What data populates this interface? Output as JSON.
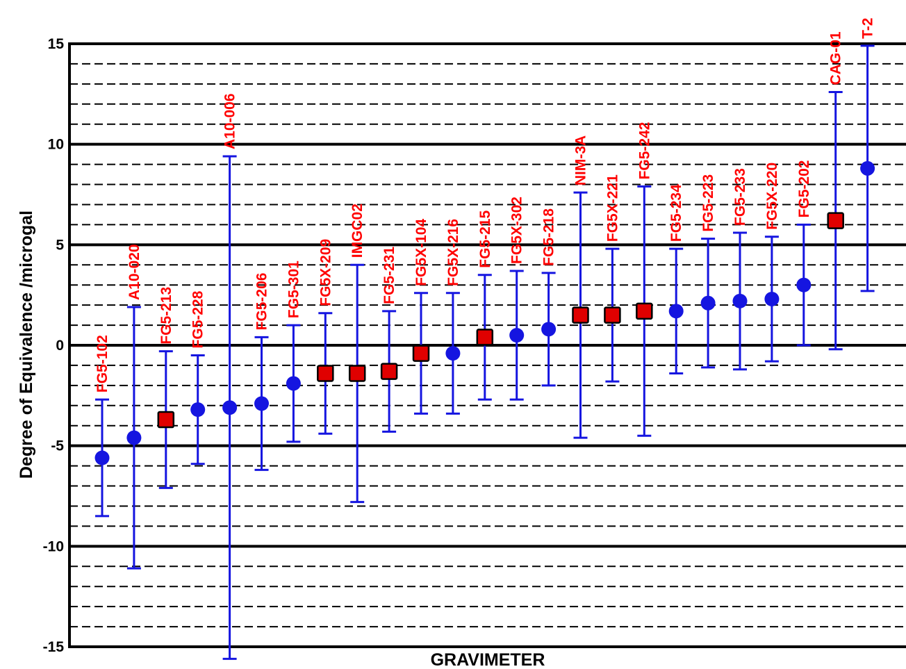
{
  "colors": {
    "errorbar": "#1515e0",
    "point_circle": "#1515e0",
    "point_square": "#e00000",
    "label": "#ff0000",
    "grid": "#000000"
  },
  "chart_data": {
    "type": "scatter",
    "title": "",
    "xlabel": "GRAVIMETER",
    "ylabel": "Degree of Equivalence /microgal",
    "ylim": [
      -15,
      15
    ],
    "yticks": [
      15,
      10,
      5,
      0,
      -5,
      -10,
      -15
    ],
    "grid": {
      "major_step": 5,
      "minor_step": 1,
      "minor_style": "dashed"
    },
    "legend": "none",
    "points": [
      {
        "name": "FG5-102",
        "y": -5.6,
        "lower": -8.5,
        "upper": -2.7,
        "marker": "circle"
      },
      {
        "name": "A10-020",
        "y": -4.6,
        "lower": -11.1,
        "upper": 1.9,
        "marker": "circle"
      },
      {
        "name": "FG5-213",
        "y": -3.7,
        "lower": -7.1,
        "upper": -0.3,
        "marker": "square"
      },
      {
        "name": "FG5-228",
        "y": -3.2,
        "lower": -5.9,
        "upper": -0.5,
        "marker": "circle"
      },
      {
        "name": "A10-006",
        "y": -3.1,
        "lower": -15.6,
        "upper": 9.4,
        "marker": "circle"
      },
      {
        "name": "FG5-206",
        "y": -2.9,
        "lower": -6.2,
        "upper": 0.4,
        "marker": "circle"
      },
      {
        "name": "FG5-301",
        "y": -1.9,
        "lower": -4.8,
        "upper": 1.0,
        "marker": "circle"
      },
      {
        "name": "FG5X-209",
        "y": -1.4,
        "lower": -4.4,
        "upper": 1.6,
        "marker": "square"
      },
      {
        "name": "IMGC02",
        "y": -1.4,
        "lower": -7.8,
        "upper": 4.0,
        "marker": "square"
      },
      {
        "name": "FG5-231",
        "y": -1.3,
        "lower": -4.3,
        "upper": 1.7,
        "marker": "square"
      },
      {
        "name": "FG5X-104",
        "y": -0.4,
        "lower": -3.4,
        "upper": 2.6,
        "marker": "square"
      },
      {
        "name": "FG5X-216",
        "y": -0.4,
        "lower": -3.4,
        "upper": 2.6,
        "marker": "circle"
      },
      {
        "name": "FG5-215",
        "y": 0.4,
        "lower": -2.7,
        "upper": 3.5,
        "marker": "square"
      },
      {
        "name": "FG5X-302",
        "y": 0.5,
        "lower": -2.7,
        "upper": 3.7,
        "marker": "circle"
      },
      {
        "name": "FG5-218",
        "y": 0.8,
        "lower": -2.0,
        "upper": 3.6,
        "marker": "circle"
      },
      {
        "name": "NIM-3A",
        "y": 1.5,
        "lower": -4.6,
        "upper": 7.6,
        "marker": "square"
      },
      {
        "name": "FG5X-221",
        "y": 1.5,
        "lower": -1.8,
        "upper": 4.8,
        "marker": "square"
      },
      {
        "name": "FG5-242",
        "y": 1.7,
        "lower": -4.5,
        "upper": 7.9,
        "marker": "square"
      },
      {
        "name": "FG5-234",
        "y": 1.7,
        "lower": -1.4,
        "upper": 4.8,
        "marker": "circle"
      },
      {
        "name": "FG5-223",
        "y": 2.1,
        "lower": -1.1,
        "upper": 5.3,
        "marker": "circle"
      },
      {
        "name": "FG5-233",
        "y": 2.2,
        "lower": -1.2,
        "upper": 5.6,
        "marker": "circle"
      },
      {
        "name": "FG5X-220",
        "y": 2.3,
        "lower": -0.8,
        "upper": 5.4,
        "marker": "circle"
      },
      {
        "name": "FG5-202",
        "y": 3.0,
        "lower": 0.0,
        "upper": 6.0,
        "marker": "circle"
      },
      {
        "name": "CAG-01",
        "y": 6.2,
        "lower": -0.2,
        "upper": 12.6,
        "marker": "square"
      },
      {
        "name": "T-2",
        "y": 8.8,
        "lower": 2.7,
        "upper": 14.9,
        "marker": "circle"
      }
    ]
  }
}
